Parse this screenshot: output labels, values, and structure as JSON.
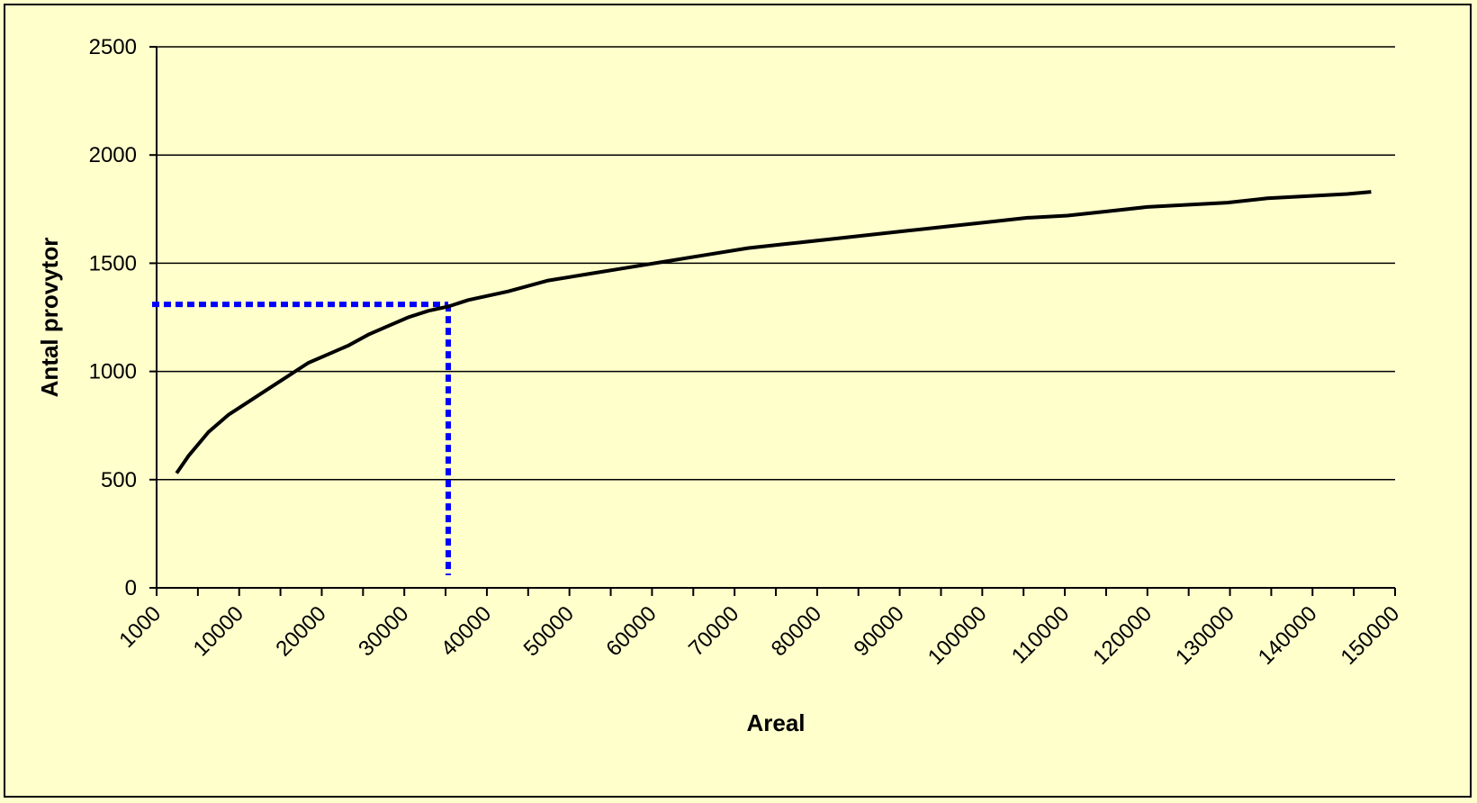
{
  "chart_data": {
    "type": "line",
    "title": "",
    "xlabel": "Areal",
    "ylabel": "Antal provytor",
    "grid": true,
    "legend": "none",
    "xlim": [
      1000,
      156000
    ],
    "ylim": [
      0,
      2500
    ],
    "y_ticks": [
      0,
      500,
      1000,
      1500,
      2000,
      2500
    ],
    "x_tick_labels": [
      "1000",
      "10000",
      "20000",
      "30000",
      "40000",
      "50000",
      "60000",
      "70000",
      "80000",
      "90000",
      "100000",
      "110000",
      "120000",
      "130000",
      "140000",
      "150000"
    ],
    "series": [
      {
        "color": "#000000",
        "x": [
          3500,
          5000,
          7500,
          10000,
          12500,
          15000,
          17500,
          20000,
          22500,
          25000,
          27500,
          30000,
          32500,
          35000,
          37500,
          40000,
          45000,
          50000,
          55000,
          60000,
          65000,
          70000,
          75000,
          80000,
          85000,
          90000,
          95000,
          100000,
          105000,
          110000,
          115000,
          120000,
          125000,
          130000,
          135000,
          140000,
          145000,
          150000,
          153000
        ],
        "y": [
          530,
          610,
          720,
          800,
          860,
          920,
          980,
          1040,
          1080,
          1120,
          1170,
          1210,
          1250,
          1280,
          1300,
          1330,
          1370,
          1420,
          1450,
          1480,
          1510,
          1540,
          1570,
          1590,
          1610,
          1630,
          1650,
          1670,
          1690,
          1710,
          1720,
          1740,
          1760,
          1770,
          1780,
          1800,
          1810,
          1820,
          1830
        ]
      }
    ],
    "reference_lines": {
      "color": "#0000ff",
      "x": 37500,
      "y": 1310
    }
  }
}
